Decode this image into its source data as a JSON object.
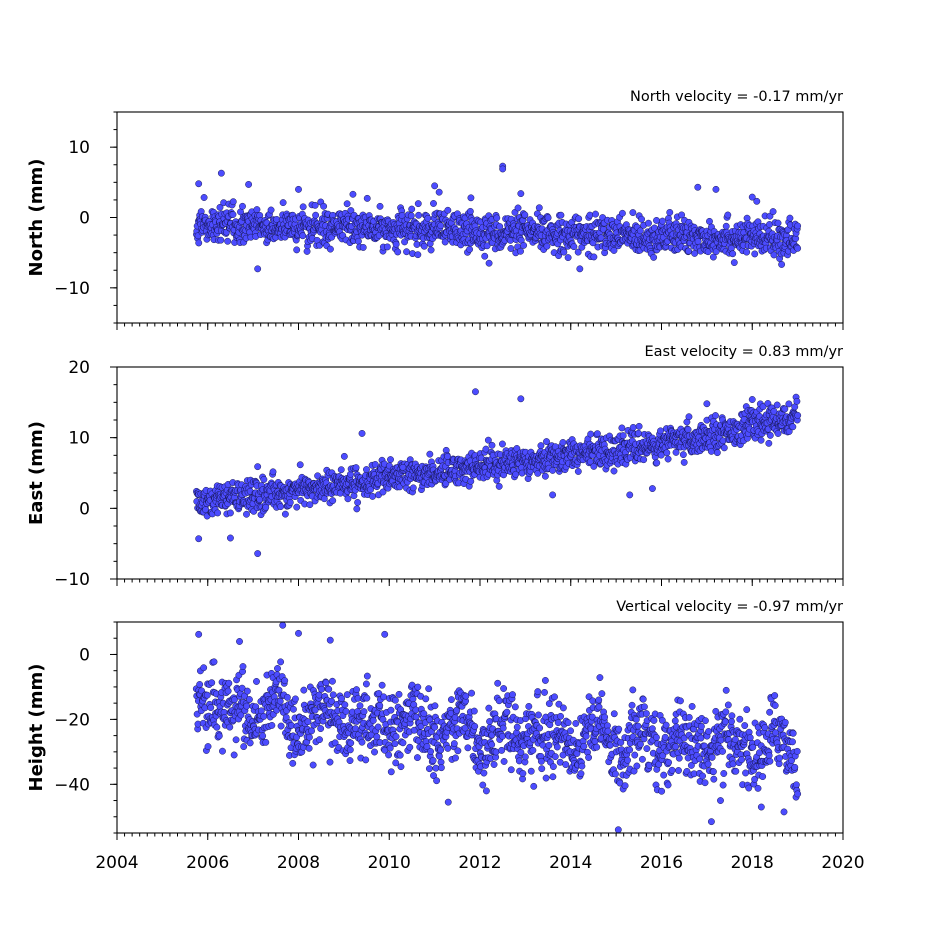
{
  "chart_data": [
    {
      "type": "scatter",
      "title": "North velocity = -0.17 mm/yr",
      "ylabel": "North (mm)",
      "xlabel": "",
      "xlim": [
        2004,
        2020
      ],
      "ylim": [
        -15,
        15
      ],
      "yticks": [
        {
          "v": -10,
          "label": "−10"
        },
        {
          "v": 0,
          "label": "0"
        },
        {
          "v": 10,
          "label": "10"
        }
      ],
      "yminor_step": 2.5,
      "xtick_labels_shown": false,
      "marker_color": "#4c4cff",
      "series": [
        {
          "time_range": [
            2005.75,
            2019.0
          ],
          "trend": [
            [
              2005.75,
              -1.0
            ],
            [
              2013.0,
              -2.2
            ],
            [
              2019.0,
              -3.1
            ]
          ],
          "scatter_sd": 1.3,
          "outliers": [
            [
              2005.8,
              4.8
            ],
            [
              2006.3,
              6.3
            ],
            [
              2006.9,
              4.7
            ],
            [
              2007.1,
              -7.3
            ],
            [
              2008.0,
              4.0
            ],
            [
              2009.2,
              3.3
            ],
            [
              2011.0,
              4.5
            ],
            [
              2011.1,
              3.6
            ],
            [
              2011.8,
              2.8
            ],
            [
              2012.5,
              7.3
            ],
            [
              2012.5,
              6.9
            ],
            [
              2012.2,
              -6.5
            ],
            [
              2012.9,
              3.4
            ],
            [
              2014.2,
              -7.3
            ],
            [
              2016.8,
              4.3
            ],
            [
              2017.2,
              4.0
            ],
            [
              2018.0,
              2.9
            ],
            [
              2018.1,
              2.3
            ],
            [
              2019.0,
              -1.2
            ]
          ]
        }
      ]
    },
    {
      "type": "scatter",
      "title": "East velocity = 0.83 mm/yr",
      "ylabel": "East (mm)",
      "xlabel": "",
      "xlim": [
        2004,
        2020
      ],
      "ylim": [
        -10,
        20
      ],
      "yticks": [
        {
          "v": -10,
          "label": "−10"
        },
        {
          "v": 0,
          "label": "0"
        },
        {
          "v": 10,
          "label": "10"
        },
        {
          "v": 20,
          "label": "20"
        }
      ],
      "yminor_step": 2.5,
      "xtick_labels_shown": false,
      "marker_color": "#4c4cff",
      "series": [
        {
          "time_range": [
            2005.75,
            2019.0
          ],
          "trend": [
            [
              2005.75,
              0.8
            ],
            [
              2008.0,
              2.5
            ],
            [
              2010.0,
              4.3
            ],
            [
              2012.0,
              6.0
            ],
            [
              2014.0,
              7.6
            ],
            [
              2016.0,
              9.0
            ],
            [
              2017.5,
              11.0
            ],
            [
              2019.0,
              13.2
            ]
          ],
          "scatter_sd": 1.1,
          "outliers": [
            [
              2005.8,
              -4.3
            ],
            [
              2006.5,
              -4.2
            ],
            [
              2007.1,
              -6.4
            ],
            [
              2007.1,
              5.9
            ],
            [
              2009.4,
              10.6
            ],
            [
              2010.3,
              5.8
            ],
            [
              2011.9,
              16.5
            ],
            [
              2012.9,
              15.5
            ],
            [
              2013.6,
              1.9
            ],
            [
              2015.3,
              1.9
            ],
            [
              2015.8,
              2.8
            ],
            [
              2016.5,
              6.5
            ],
            [
              2017.0,
              14.8
            ],
            [
              2018.0,
              15.4
            ]
          ]
        }
      ]
    },
    {
      "type": "scatter",
      "title": "Vertical velocity = -0.97 mm/yr",
      "ylabel": "Height (mm)",
      "xlabel": "",
      "xlim": [
        2004,
        2020
      ],
      "ylim": [
        -55,
        10
      ],
      "yticks": [
        {
          "v": -40,
          "label": "−40"
        },
        {
          "v": -20,
          "label": "−20"
        },
        {
          "v": 0,
          "label": "0"
        }
      ],
      "yminor_step": 5,
      "xtick_labels_shown": true,
      "marker_color": "#4c4cff",
      "series": [
        {
          "time_range": [
            2005.75,
            2019.0
          ],
          "trend": [
            [
              2005.75,
              -16.0
            ],
            [
              2010.0,
              -22.0
            ],
            [
              2014.0,
              -25.5
            ],
            [
              2019.0,
              -29.0
            ]
          ],
          "scatter_sd": 5.5,
          "seasonal_amplitude": 6,
          "outliers": [
            [
              2005.8,
              6.2
            ],
            [
              2006.7,
              4.0
            ],
            [
              2008.0,
              6.5
            ],
            [
              2008.7,
              4.4
            ],
            [
              2009.9,
              6.2
            ],
            [
              2011.3,
              -45.5
            ],
            [
              2017.1,
              -51.5
            ],
            [
              2017.3,
              -45.0
            ],
            [
              2018.2,
              -47.0
            ],
            [
              2018.7,
              -48.5
            ]
          ]
        }
      ]
    }
  ],
  "x_axis": {
    "ticks": [
      {
        "v": 2004,
        "label": "2004"
      },
      {
        "v": 2006,
        "label": "2006"
      },
      {
        "v": 2008,
        "label": "2008"
      },
      {
        "v": 2010,
        "label": "2010"
      },
      {
        "v": 2012,
        "label": "2012"
      },
      {
        "v": 2014,
        "label": "2014"
      },
      {
        "v": 2016,
        "label": "2016"
      },
      {
        "v": 2018,
        "label": "2018"
      },
      {
        "v": 2020,
        "label": "2020"
      }
    ],
    "minor_step": 0.1666667
  }
}
